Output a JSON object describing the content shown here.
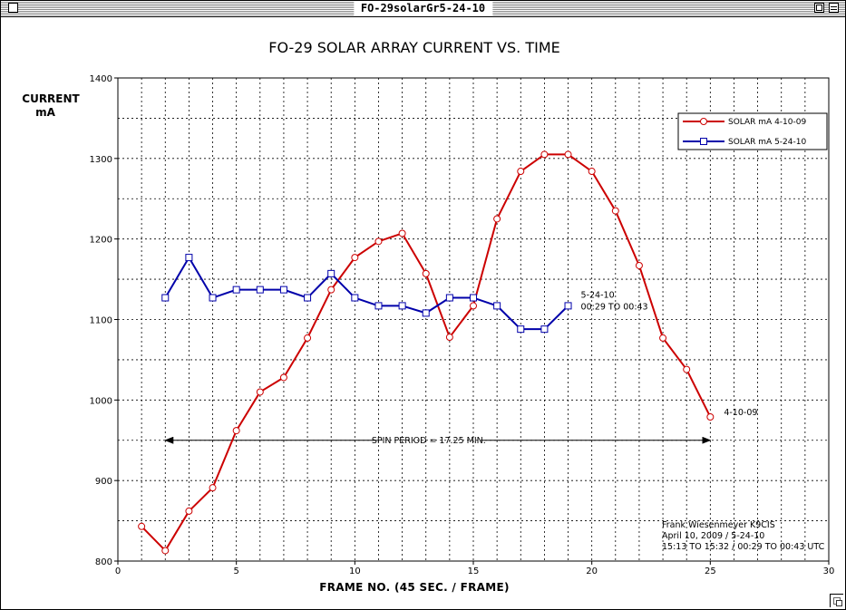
{
  "window": {
    "title": "FO-29solarGr5-24-10"
  },
  "chart_data": {
    "type": "line",
    "title": "FO-29 SOLAR ARRAY CURRENT VS. TIME",
    "ylabel_line1": "CURRENT",
    "ylabel_line2": "mA",
    "xlabel": "FRAME NO. (45 SEC. / FRAME)",
    "xlim": [
      0,
      30
    ],
    "ylim": [
      800,
      1400
    ],
    "x_ticks": [
      0,
      5,
      10,
      15,
      20,
      25,
      30
    ],
    "y_ticks": [
      800,
      900,
      1000,
      1100,
      1200,
      1300,
      1400
    ],
    "grid": true,
    "legend_position": "top-right",
    "series": [
      {
        "name": "SOLAR mA 4-10-09",
        "color": "#cc0000",
        "marker": "circle",
        "end_label": "4-10-09",
        "x": [
          1,
          2,
          3,
          4,
          5,
          6,
          7,
          8,
          9,
          10,
          11,
          12,
          13,
          14,
          15,
          16,
          17,
          18,
          19,
          20,
          21,
          22,
          23,
          24,
          25
        ],
        "values": [
          843,
          813,
          862,
          891,
          962,
          1010,
          1028,
          1077,
          1137,
          1177,
          1197,
          1207,
          1157,
          1078,
          1117,
          1225,
          1284,
          1305,
          1305,
          1284,
          1235,
          1167,
          1077,
          1038,
          979
        ]
      },
      {
        "name": "SOLAR mA 5-24-10",
        "color": "#0000aa",
        "marker": "square",
        "end_label_line1": "5-24-10",
        "end_label_line2": "00:29 TO 00:43",
        "x": [
          2,
          3,
          4,
          5,
          6,
          7,
          8,
          9,
          10,
          11,
          12,
          13,
          14,
          15,
          16,
          17,
          18,
          19
        ],
        "values": [
          1127,
          1177,
          1127,
          1137,
          1137,
          1137,
          1127,
          1157,
          1127,
          1117,
          1117,
          1108,
          1127,
          1127,
          1117,
          1088,
          1088,
          1117
        ]
      }
    ],
    "annotations": {
      "spin_period": {
        "text": "SPIN PERIOD = 17.25 MIN.",
        "x_start": 2,
        "x_end": 25,
        "y": 950
      },
      "credit_line1": "Frank Wiesenmeyer K9CIS",
      "credit_line2": "April 10, 2009 / 5-24-10",
      "credit_line3": "15:13 TO 15:32 / 00:29 TO 00:43 UTC"
    }
  }
}
